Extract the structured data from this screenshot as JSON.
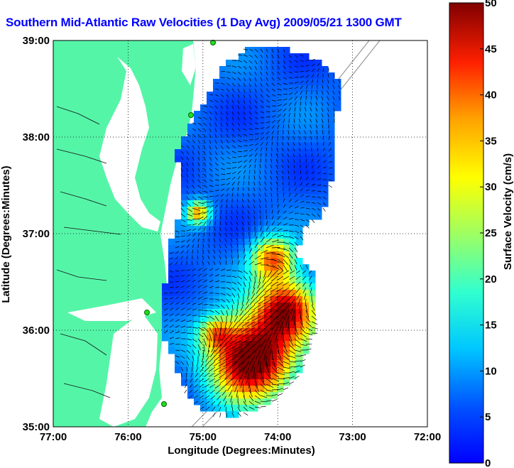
{
  "title": "Southern Mid-Atlantic Raw Velocities (1 Day Avg) 2009/05/21 1300 GMT",
  "axes": {
    "xlabel": "Longitude (Degrees:Minutes)",
    "ylabel": "Latitude (Degrees:Minutes)",
    "x_ticks": [
      "77:00",
      "76:00",
      "75:00",
      "74:00",
      "73:00",
      "72:00"
    ],
    "y_ticks": [
      "39:00",
      "38:00",
      "37:00",
      "36:00",
      "35:00"
    ],
    "x_range": [
      -77,
      -72
    ],
    "y_range": [
      35,
      39
    ],
    "grid": "dotted"
  },
  "colorbar": {
    "label": "Surface Velocity (cm/s)",
    "ticks": [
      "50",
      "45",
      "40",
      "35",
      "30",
      "25",
      "20",
      "15",
      "10",
      "5",
      "0"
    ],
    "range": [
      0,
      50
    ],
    "colormap": "jet"
  },
  "colors": {
    "land": "#55f5a8",
    "title": "#0000ff",
    "station": "#22dd22"
  },
  "stations": [
    "station-1",
    "station-2",
    "station-3",
    "station-4"
  ]
}
